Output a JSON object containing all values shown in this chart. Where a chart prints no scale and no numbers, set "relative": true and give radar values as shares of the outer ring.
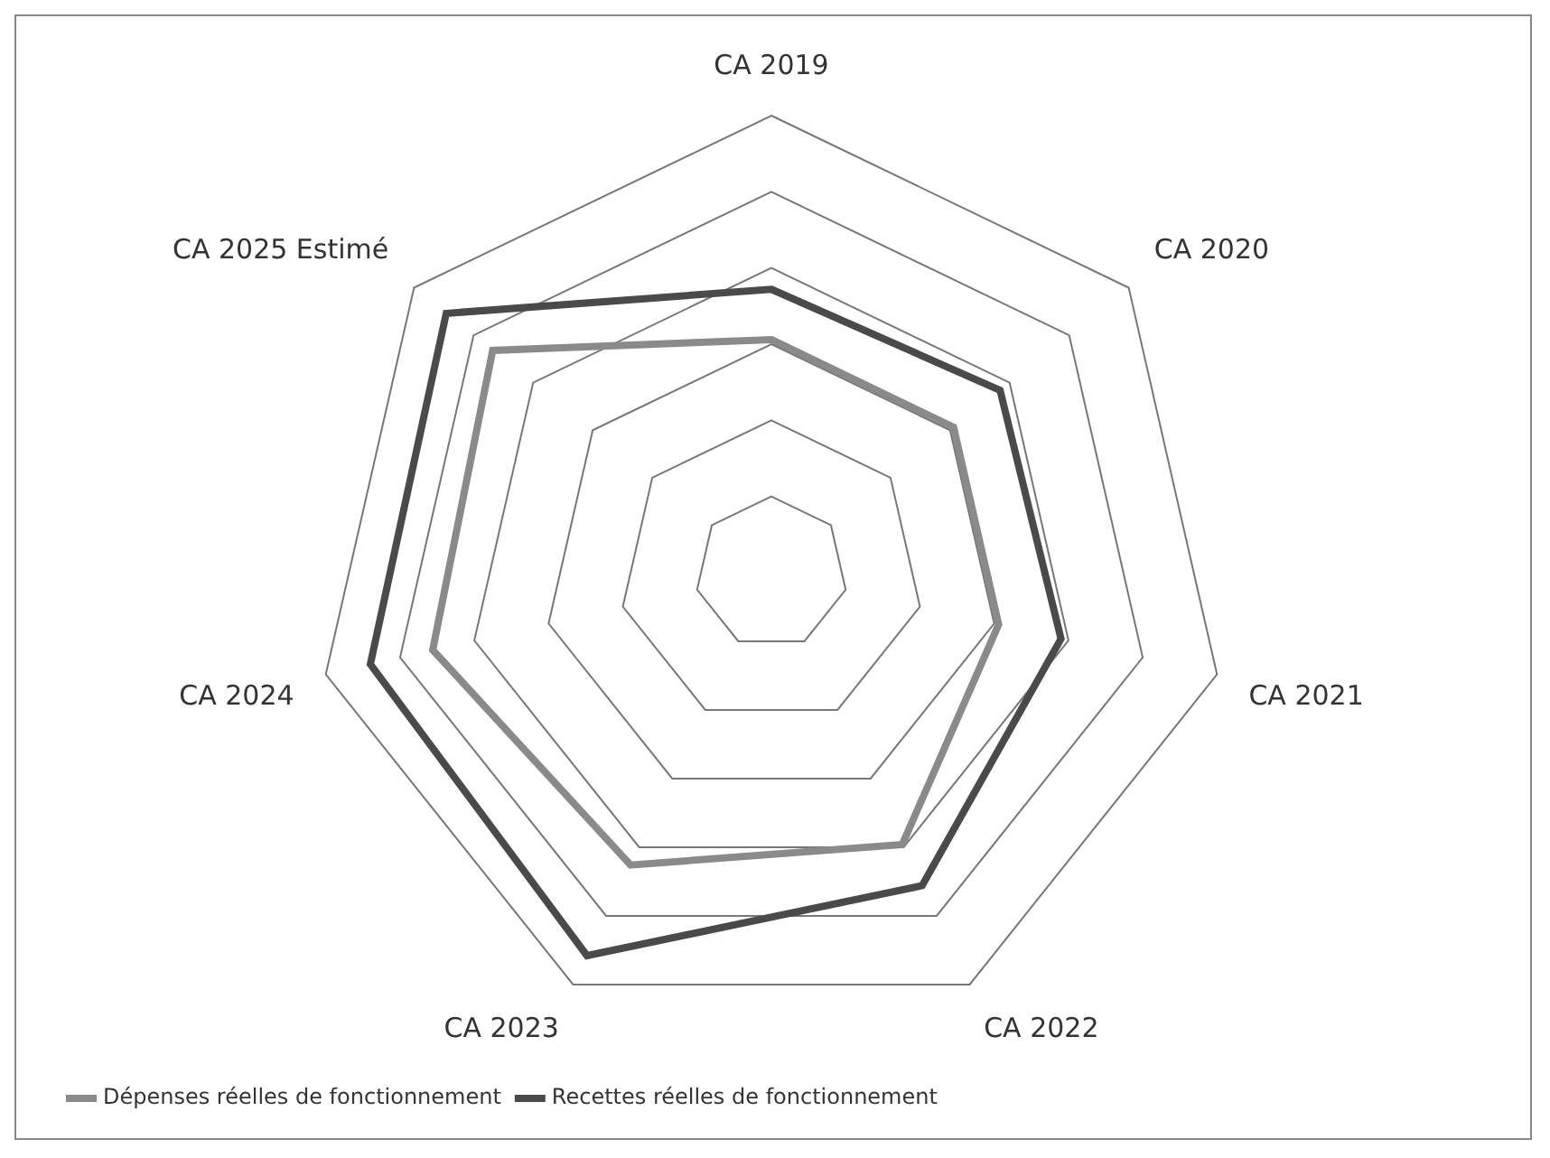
{
  "chart_data": {
    "type": "radar",
    "relative": true,
    "grid": true,
    "legend": "bottom left",
    "marker": "none",
    "categories": [
      "CA 2019",
      "CA 2020",
      "CA 2021",
      "CA 2022",
      "CA 2023",
      "CA 2024",
      "CA 2025 Estimé"
    ],
    "series": [
      {
        "name": "Dépenses réelles de fonctionnement",
        "color": "#8a8a8a",
        "values": [
          0.51,
          0.51,
          0.51,
          0.66,
          0.71,
          0.76,
          0.78
        ]
      },
      {
        "name": "Recettes réelles de fonctionnement",
        "color": "#4a4a4a",
        "values": [
          0.62,
          0.64,
          0.65,
          0.76,
          0.93,
          0.9,
          0.91
        ]
      }
    ]
  }
}
